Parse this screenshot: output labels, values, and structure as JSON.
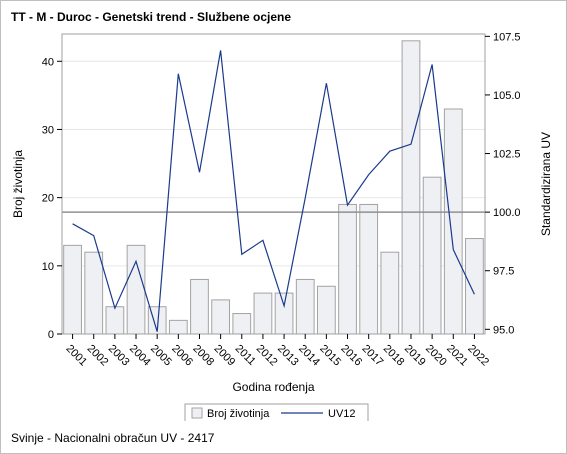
{
  "title": "TT - M - Duroc - Genetski trend - Službene ocjene",
  "footnote": "Svinje - Nacionalni obračun UV - 2417",
  "chart_data": {
    "type": "bar",
    "categories": [
      "2001",
      "2002",
      "2003",
      "2004",
      "2005",
      "2006",
      "2008",
      "2009",
      "2011",
      "2012",
      "2013",
      "2014",
      "2015",
      "2016",
      "2017",
      "2018",
      "2019",
      "2020",
      "2021",
      "2022"
    ],
    "xlabel": "Godina rođenja",
    "ylabel": "Broj životinja",
    "y2label": "Standardizirana UV",
    "ylim": [
      0,
      44
    ],
    "y2lim": [
      94.8,
      107.6
    ],
    "yticks": [
      0,
      10,
      20,
      30,
      40
    ],
    "y2ticks": [
      "95.0",
      "97.5",
      "100.0",
      "102.5",
      "105.0",
      "107.5"
    ],
    "reference_line_y2": 100.0,
    "grid": true,
    "legend_position": "bottom",
    "series": [
      {
        "name": "Broj životinja",
        "kind": "bar",
        "color": "#eef0f4",
        "stroke": "#a3a3a3",
        "values": [
          13,
          12,
          4,
          13,
          4,
          2,
          8,
          5,
          3,
          6,
          6,
          8,
          7,
          19,
          19,
          12,
          43,
          23,
          33,
          14
        ]
      },
      {
        "name": "UV12",
        "kind": "line",
        "axis": "y2",
        "color": "#1b3a8c",
        "values": [
          99.5,
          99.0,
          95.9,
          97.9,
          94.9,
          105.9,
          101.7,
          106.9,
          98.2,
          98.8,
          96.0,
          100.6,
          105.5,
          100.3,
          101.6,
          102.6,
          102.9,
          106.3,
          98.4,
          96.5
        ]
      }
    ]
  }
}
